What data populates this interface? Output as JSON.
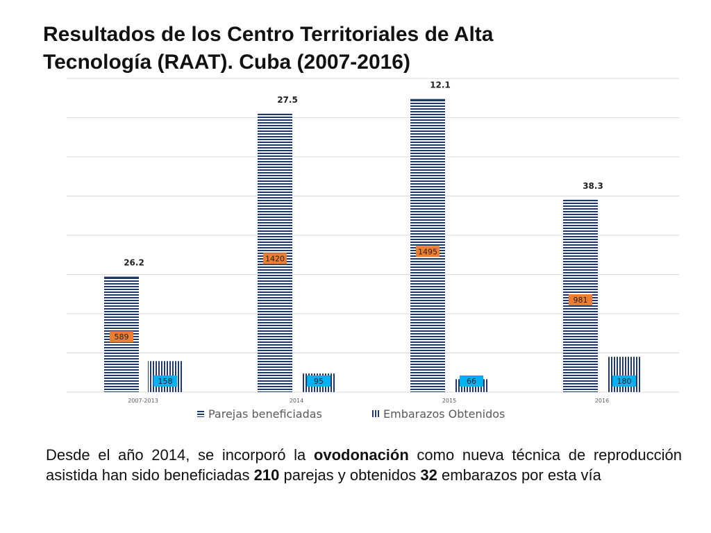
{
  "title": {
    "line1": "Resultados de los Centro Territoriales de Alta",
    "line2": "Tecnología (RAAT). Cuba (2007-2016)"
  },
  "chart_data": {
    "type": "bar",
    "title": "Resultados de los Centro Territoriales de Alta Tecnología (RAAT). Cuba (2007-2016)",
    "categories": [
      "2007-2013",
      "2014",
      "2015",
      "2016"
    ],
    "series": [
      {
        "name": "Parejas beneficiadas",
        "values": [
          589,
          1420,
          1495,
          981
        ],
        "color": "#1f3864",
        "pattern": "horizontal-lines"
      },
      {
        "name": "Embarazos Obtenidos",
        "values": [
          158,
          95,
          66,
          180
        ],
        "color": "#1f3864",
        "pattern": "vertical-lines"
      }
    ],
    "rates": [
      26.2,
      27.5,
      12.1,
      38.3
    ],
    "ylim": [
      0,
      1600
    ],
    "grid": true,
    "legend": "bottom",
    "colors": {
      "parejas_label_bg": "#ed7d31",
      "embarazos_label_bg": "#00b0f0",
      "grid": "#d9d9d9"
    }
  },
  "caption": {
    "p1": "Desde el año 2014, se incorporó la ",
    "bold1": "ovodonación",
    "p2": " como nueva  técnica de reproducción asistida han sido beneficiadas ",
    "bold2": "210",
    "p3": " parejas y obtenidos ",
    "bold3": "32",
    "p4": " embarazos por esta vía"
  }
}
